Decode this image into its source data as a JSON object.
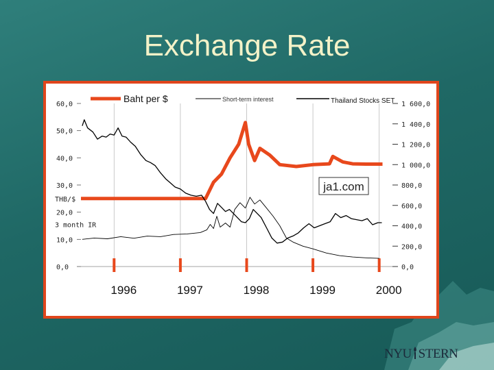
{
  "slide": {
    "title": "Exchange Rate",
    "logo_text_left": "NYU",
    "logo_text_right": "STERN",
    "watermark": "ja1.com"
  },
  "colors": {
    "background": "#1f6865",
    "title": "#f3f2c8",
    "frame": "#e0451c",
    "baht_series": "#e8481c",
    "black_series": "#000000"
  },
  "chart_data": {
    "type": "line",
    "legend": [
      {
        "name": "Baht per $",
        "color": "#e8481c"
      },
      {
        "name": "Short-term interest",
        "color": "#000000"
      },
      {
        "name": "Thailand Stocks SET",
        "color": "#000000"
      }
    ],
    "left_axis": {
      "labels": [
        "60,0",
        "50,0",
        "40,0",
        "30,0",
        "20,0",
        "10,0",
        "0,0"
      ],
      "values": [
        60,
        50,
        40,
        30,
        20,
        10,
        0
      ],
      "extra_labels": [
        "THB/$",
        "3 month IR"
      ]
    },
    "right_axis": {
      "labels": [
        "1 600,0",
        "1 400,0",
        "1 200,0",
        "1 000,0",
        "800,0",
        "600,0",
        "400,0",
        "200,0",
        "0,0"
      ],
      "values": [
        1600,
        1400,
        1200,
        1000,
        800,
        600,
        400,
        200,
        0
      ]
    },
    "x_axis": {
      "labels": [
        "1996",
        "1997",
        "1998",
        "1999",
        "2000"
      ],
      "values": [
        1996,
        1997,
        1998,
        1999,
        2000
      ]
    },
    "x_range": [
      1995.5,
      2000.2
    ],
    "series": [
      {
        "name": "Baht per $",
        "axis": "left",
        "x": [
          1995.5,
          1997.38,
          1997.5,
          1997.62,
          1997.75,
          1997.88,
          1997.98,
          1998.03,
          1998.12,
          1998.2,
          1998.35,
          1998.5,
          1998.75,
          1999.0,
          1999.25,
          1999.3,
          1999.45,
          1999.6,
          1999.8,
          2000.0,
          2000.05
        ],
        "values": [
          25.0,
          25.0,
          31.0,
          34.0,
          40.0,
          45.0,
          53.0,
          45.0,
          39.0,
          43.5,
          41.0,
          37.5,
          36.8,
          37.5,
          37.8,
          40.5,
          38.5,
          37.8,
          37.7,
          37.7,
          37.7
        ]
      },
      {
        "name": "Thailand Stocks SET",
        "axis": "right",
        "x": [
          1995.52,
          1995.55,
          1995.6,
          1995.68,
          1995.75,
          1995.82,
          1995.88,
          1995.94,
          1996.0,
          1996.06,
          1996.12,
          1996.18,
          1996.25,
          1996.32,
          1996.4,
          1996.48,
          1996.55,
          1996.62,
          1996.7,
          1996.78,
          1996.85,
          1996.92,
          1997.0,
          1997.08,
          1997.16,
          1997.24,
          1997.32,
          1997.38,
          1997.44,
          1997.5,
          1997.56,
          1997.62,
          1997.68,
          1997.74,
          1997.8,
          1997.86,
          1997.92,
          1997.98,
          1998.04,
          1998.1,
          1998.16,
          1998.22,
          1998.3,
          1998.38,
          1998.46,
          1998.54,
          1998.62,
          1998.7,
          1998.78,
          1998.86,
          1998.94,
          1999.02,
          1999.1,
          1999.18,
          1999.26,
          1999.34,
          1999.42,
          1999.5,
          1999.58,
          1999.66,
          1999.74,
          1999.82,
          1999.9,
          1999.98,
          2000.04
        ],
        "values": [
          1380,
          1440,
          1360,
          1320,
          1250,
          1280,
          1270,
          1300,
          1290,
          1360,
          1280,
          1270,
          1220,
          1180,
          1100,
          1040,
          1020,
          990,
          920,
          860,
          820,
          780,
          760,
          720,
          700,
          690,
          700,
          640,
          560,
          520,
          620,
          580,
          540,
          560,
          520,
          480,
          440,
          430,
          470,
          560,
          520,
          480,
          380,
          280,
          230,
          240,
          280,
          300,
          330,
          380,
          420,
          380,
          400,
          420,
          440,
          520,
          480,
          500,
          470,
          460,
          450,
          470,
          410,
          430,
          430
        ]
      },
      {
        "name": "Short-term interest",
        "axis": "left",
        "x": [
          1995.52,
          1995.7,
          1995.9,
          1996.1,
          1996.3,
          1996.5,
          1996.7,
          1996.9,
          1997.1,
          1997.3,
          1997.4,
          1997.45,
          1997.5,
          1997.55,
          1997.6,
          1997.68,
          1997.75,
          1997.82,
          1997.9,
          1997.98,
          1998.05,
          1998.12,
          1998.2,
          1998.3,
          1998.4,
          1998.5,
          1998.6,
          1998.7,
          1998.85,
          1999.0,
          1999.2,
          1999.4,
          1999.6,
          1999.8,
          2000.0
        ],
        "values": [
          10.0,
          10.5,
          10.2,
          11.0,
          10.4,
          11.2,
          11.0,
          11.8,
          12.0,
          12.5,
          13.5,
          15.5,
          14.0,
          18.5,
          14.5,
          16.0,
          14.5,
          21.0,
          23.5,
          21.5,
          25.5,
          23.0,
          24.5,
          21.5,
          18.5,
          15.0,
          10.5,
          9.0,
          7.5,
          6.5,
          5.0,
          4.0,
          3.5,
          3.2,
          3.0
        ]
      }
    ]
  }
}
